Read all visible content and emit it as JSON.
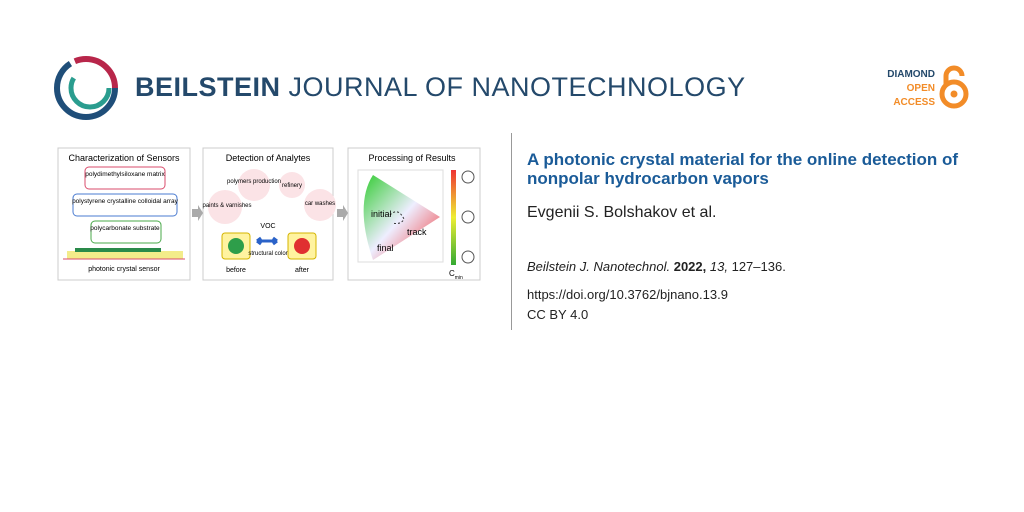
{
  "header": {
    "brand": "BEILSTEIN",
    "journal": "JOURNAL OF NANOTECHNOLOGY",
    "badge": [
      "DIAMOND",
      "OPEN",
      "ACCESS"
    ]
  },
  "abstract": {
    "panels": [
      {
        "title": "Characterization of Sensors",
        "labels": [
          "polydimethylsiloxane matrix",
          "polystyrene crystalline colloidal array",
          "polycarbonate substrate",
          "photonic crystal sensor"
        ]
      },
      {
        "title": "Detection of Analytes",
        "labels": [
          "polymers production",
          "refinery",
          "paints & varnishes",
          "car washes",
          "VOC",
          "structural color",
          "before",
          "after"
        ]
      },
      {
        "title": "Processing of Results",
        "labels": [
          "initial",
          "track",
          "final"
        ],
        "cmin": {
          "base": "C",
          "sub": "min"
        }
      }
    ]
  },
  "article": {
    "title": "A photonic crystal material for the online detection of nonpolar hydrocarbon vapors",
    "authors": "Evgenii S. Bolshakov et al.",
    "citation": {
      "journal": "Beilstein J. Nanotechnol.",
      "year": "2022,",
      "volume": "13,",
      "pages": "127–136."
    },
    "doi": "https://doi.org/10.3762/bjnano.13.9",
    "license": "CC BY 4.0"
  }
}
